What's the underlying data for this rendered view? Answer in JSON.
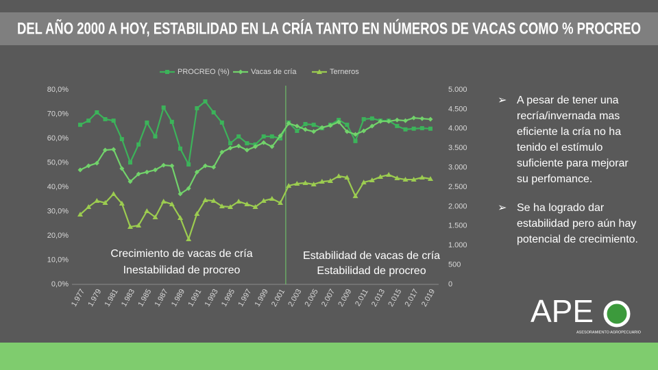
{
  "header": {
    "title": "DEL AÑO 2000 A HOY, ESTABILIDAD EN LA CRÍA TANTO EN NÚMEROS DE VACAS COMO % PROCREO"
  },
  "chart_data": {
    "type": "line",
    "categories": [
      "1.977",
      null,
      "1.979",
      null,
      "1.981",
      null,
      "1.983",
      null,
      "1.985",
      null,
      "1.987",
      null,
      "1.989",
      null,
      "1.991",
      null,
      "1.993",
      null,
      "1.995",
      null,
      "1.997",
      null,
      "1.999",
      null,
      "2.001",
      null,
      "2.003",
      null,
      "2.005",
      null,
      "2.007",
      null,
      "2.009",
      null,
      "2.011",
      null,
      "2.013",
      null,
      "2.015",
      null,
      "2.017",
      null,
      "2.019"
    ],
    "series": [
      {
        "name": "PROCREO (%)",
        "color": "#3cb35a",
        "marker": "square",
        "axis": "y",
        "values": [
          65.6,
          67.3,
          70.7,
          67.9,
          67.3,
          59.7,
          50.1,
          57.5,
          66.5,
          60.8,
          72.7,
          66.8,
          55.8,
          49.3,
          72.4,
          75.2,
          70.7,
          66.5,
          58,
          60.8,
          58,
          57.5,
          60.8,
          60.8,
          60,
          66.5,
          63.1,
          65.9,
          65.6,
          64.2,
          65.6,
          67.6,
          65.6,
          58.9,
          67.9,
          68.2,
          67.3,
          67.3,
          65.1,
          63.7,
          64,
          64.2,
          64
        ]
      },
      {
        "name": "Vacas de cría",
        "color": "#72d36b",
        "marker": "diamond",
        "axis": "y2",
        "values": [
          2940,
          3045,
          3115,
          3450,
          3467,
          2975,
          2640,
          2834,
          2886,
          2940,
          3062,
          3045,
          2323,
          2464,
          2886,
          3045,
          3010,
          3397,
          3502,
          3555,
          3450,
          3538,
          3643,
          3538,
          3819,
          4136,
          4066,
          3978,
          3925,
          4030,
          4083,
          4171,
          3925,
          3854,
          3942,
          4066,
          4189,
          4189,
          4224,
          4206,
          4277,
          4259,
          4242
        ]
      },
      {
        "name": "Terneros",
        "color": "#9ccc50",
        "marker": "triangle",
        "axis": "y2",
        "values": [
          1795,
          1989,
          2147,
          2094,
          2323,
          2077,
          1478,
          1514,
          1883,
          1725,
          2130,
          2059,
          1707,
          1162,
          1813,
          2165,
          2147,
          2006,
          1989,
          2130,
          2059,
          1989,
          2147,
          2200,
          2094,
          2534,
          2587,
          2605,
          2570,
          2640,
          2658,
          2781,
          2746,
          2270,
          2622,
          2675,
          2763,
          2816,
          2728,
          2693,
          2693,
          2746,
          2711
        ]
      }
    ],
    "ylim": [
      0,
      80
    ],
    "yticks": [
      {
        "value": 0,
        "label": "0,0%"
      },
      {
        "value": 10,
        "label": "10,0%"
      },
      {
        "value": 20,
        "label": "20,0%"
      },
      {
        "value": 30,
        "label": "30,0%"
      },
      {
        "value": 40,
        "label": "40,0%"
      },
      {
        "value": 50,
        "label": "50,0%"
      },
      {
        "value": 60,
        "label": "60,0%"
      },
      {
        "value": 70,
        "label": "70,0%"
      },
      {
        "value": 80,
        "label": "80,0%"
      }
    ],
    "y2lim": [
      0,
      5000
    ],
    "y2ticks": [
      0,
      500,
      {
        "value": 1000,
        "label": "1.000"
      },
      {
        "value": 1500,
        "label": "1.500"
      },
      {
        "value": 2000,
        "label": "2.000"
      },
      {
        "value": 2500,
        "label": "2.500"
      },
      {
        "value": 3000,
        "label": "3.000"
      },
      {
        "value": 3500,
        "label": "3.500"
      },
      {
        "value": 4000,
        "label": "4.000"
      },
      {
        "value": 4500,
        "label": "4.500"
      },
      {
        "value": 5000,
        "label": "5.000"
      }
    ],
    "annotations": [
      "Crecimiento de vacas de cría",
      "Inestabilidad de procreo",
      "Estabilidad de vacas de cría",
      "Estabilidad de procreo"
    ]
  },
  "bullets": [
    "A pesar de tener una recría/invernada mas eficiente la cría no ha tenido el estímulo suficiente para mejorar su perfomance.",
    "Se ha logrado dar estabilidad pero aún hay potencial de crecimiento."
  ],
  "logo": {
    "text": "APE",
    "subtitle": "ASESORAMIENTO AGROPECUARIO"
  }
}
